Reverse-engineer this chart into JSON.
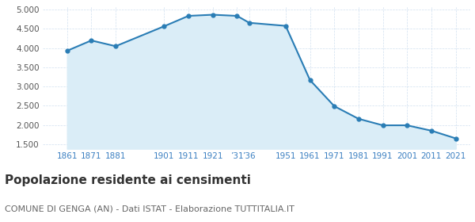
{
  "years": [
    1861,
    1871,
    1881,
    1901,
    1911,
    1921,
    1931,
    1936,
    1951,
    1961,
    1971,
    1981,
    1991,
    2001,
    2011,
    2021
  ],
  "population": [
    3930,
    4200,
    4050,
    4570,
    4840,
    4870,
    4840,
    4660,
    4580,
    3170,
    2490,
    2160,
    1990,
    1990,
    1850,
    1650
  ],
  "y_ticks": [
    1500,
    2000,
    2500,
    3000,
    3500,
    4000,
    4500,
    5000
  ],
  "ylim": [
    1380,
    5080
  ],
  "xlim_left": 1851,
  "xlim_right": 2027,
  "line_color": "#2a7db5",
  "fill_color": "#daedf7",
  "marker_color": "#2a7db5",
  "bg_color": "#ffffff",
  "plot_bg_color": "#ffffff",
  "grid_color": "#ccddee",
  "x_tick_color": "#3a7fc1",
  "y_tick_color": "#555555",
  "title": "Popolazione residente ai censimenti",
  "subtitle": "COMUNE DI GENGA (AN) - Dati ISTAT - Elaborazione TUTTITALIA.IT",
  "title_fontsize": 11,
  "subtitle_fontsize": 8,
  "x_ticks": [
    1861,
    1871,
    1881,
    1901,
    1911,
    1921,
    1931,
    1936,
    1951,
    1961,
    1971,
    1981,
    1991,
    2001,
    2011,
    2021
  ],
  "x_labels": [
    "1861",
    "1871",
    "1881",
    "1901",
    "1911",
    "1921",
    "’31",
    "’36",
    "1951",
    "1961",
    "1971",
    "1981",
    "1991",
    "2001",
    "2011",
    "2021"
  ]
}
